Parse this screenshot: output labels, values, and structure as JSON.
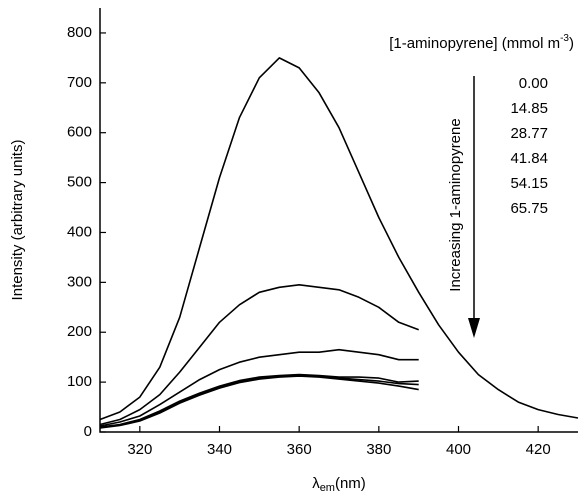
{
  "chart_data": {
    "type": "line",
    "y_label": "Intensity (arbitrary units)",
    "x_label": {
      "symbol": "λ",
      "sub": "em",
      "unit": "(nm)"
    },
    "legend_title": {
      "text": "[1-aminopyrene] (mmol m",
      "sup": "-3",
      "end": ")"
    },
    "annotation": "Increasing 1-aminopyrene",
    "x": [
      310,
      315,
      320,
      325,
      330,
      335,
      340,
      345,
      350,
      355,
      360,
      365,
      370,
      375,
      380,
      385,
      390,
      395,
      400,
      405,
      410,
      415,
      420,
      425,
      430
    ],
    "series": [
      {
        "name": "0.00",
        "color": "#000000",
        "values": [
          25,
          40,
          70,
          130,
          230,
          370,
          510,
          630,
          710,
          750,
          730,
          680,
          610,
          520,
          430,
          350,
          280,
          215,
          160,
          115,
          85,
          60,
          45,
          35,
          28
        ]
      },
      {
        "name": "14.85",
        "color": "#000000",
        "values": [
          15,
          25,
          45,
          75,
          120,
          170,
          220,
          255,
          280,
          290,
          295,
          290,
          285,
          270,
          250,
          220,
          205,
          null,
          null,
          null,
          null,
          null,
          null,
          null,
          null
        ]
      },
      {
        "name": "28.77",
        "color": "#000000",
        "values": [
          12,
          20,
          32,
          55,
          80,
          105,
          125,
          140,
          150,
          155,
          160,
          160,
          165,
          160,
          155,
          145,
          145,
          null,
          null,
          null,
          null,
          null,
          null,
          null,
          null
        ]
      },
      {
        "name": "41.84",
        "color": "#000000",
        "values": [
          10,
          15,
          25,
          42,
          62,
          78,
          92,
          103,
          110,
          113,
          115,
          113,
          110,
          110,
          108,
          100,
          102,
          null,
          null,
          null,
          null,
          null,
          null,
          null,
          null
        ]
      },
      {
        "name": "54.15",
        "color": "#000000",
        "values": [
          9,
          14,
          23,
          40,
          60,
          76,
          90,
          101,
          108,
          111,
          113,
          111,
          108,
          105,
          102,
          97,
          95,
          null,
          null,
          null,
          null,
          null,
          null,
          null,
          null
        ]
      },
      {
        "name": "65.75",
        "color": "#000000",
        "values": [
          8,
          13,
          22,
          38,
          58,
          74,
          88,
          99,
          106,
          110,
          112,
          110,
          106,
          102,
          98,
          92,
          85,
          null,
          null,
          null,
          null,
          null,
          null,
          null,
          null
        ]
      }
    ],
    "xlim": [
      310,
      430
    ],
    "ylim": [
      0,
      850
    ],
    "xticks": [
      320,
      340,
      360,
      380,
      400,
      420
    ],
    "yticks": [
      0,
      100,
      200,
      300,
      400,
      500,
      600,
      700,
      800
    ]
  }
}
